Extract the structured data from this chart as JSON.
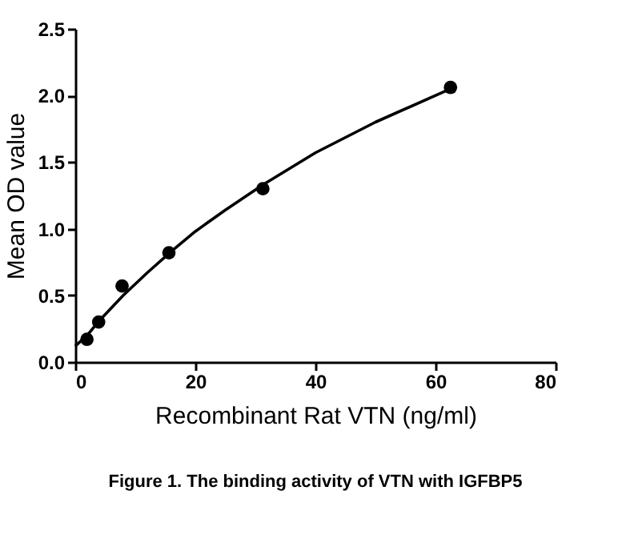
{
  "chart_data": {
    "type": "scatter",
    "xlabel": "Recombinant Rat VTN (ng/ml)",
    "ylabel": "Mean OD value",
    "annotations": [
      "Figure 1. The binding activity of VTN with IGFBP5"
    ],
    "xlim": [
      0,
      80
    ],
    "xticks": [
      0,
      20,
      40,
      60,
      80
    ],
    "ylim": [
      0,
      2.5
    ],
    "yticks": [
      {
        "value": 0,
        "label": "0.0"
      },
      {
        "value": 0.5,
        "label": "0.5"
      },
      {
        "value": 1,
        "label": "1.0"
      },
      {
        "value": 1.5,
        "label": "1.5"
      },
      {
        "value": 2,
        "label": "2.0"
      },
      {
        "value": 2.5,
        "label": "2.5"
      }
    ],
    "grid": false,
    "marker": "circle",
    "series": [
      {
        "color": "#000000",
        "x": [
          1.95,
          3.9,
          7.8,
          15.6,
          31.25,
          62.5
        ],
        "values": [
          0.17,
          0.3,
          0.57,
          0.82,
          1.3,
          2.06
        ]
      },
      {
        "type": "line",
        "color": "#000000",
        "marker": "none",
        "line_style": "solid",
        "x": [
          0,
          2,
          4,
          8,
          12,
          16,
          20,
          25,
          31.25,
          40,
          50,
          62.5
        ],
        "values": [
          0.12,
          0.2,
          0.31,
          0.5,
          0.67,
          0.83,
          0.98,
          1.14,
          1.33,
          1.57,
          1.8,
          2.05
        ]
      }
    ]
  }
}
